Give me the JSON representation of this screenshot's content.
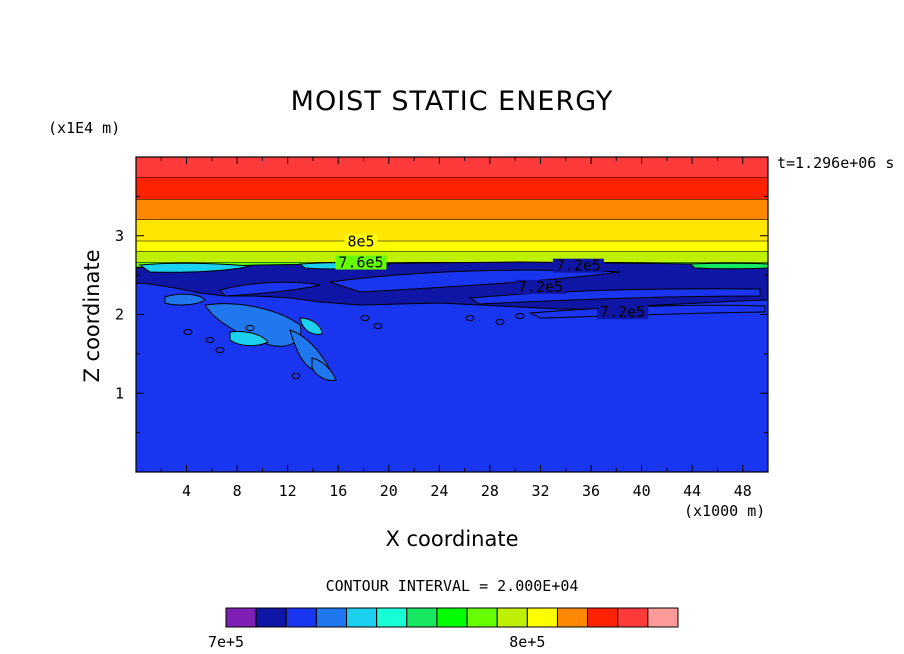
{
  "chart_data": {
    "type": "contour",
    "title": "MOIST STATIC ENERGY",
    "xlabel": "X coordinate",
    "ylabel": "Z coordinate",
    "x_multiplier": "(x1000 m)",
    "z_multiplier": "(x1E4 m)",
    "time_label": "t=1.296e+06 s",
    "contour_interval_label": "CONTOUR INTERVAL = 2.000E+04",
    "xlim": [
      0,
      50
    ],
    "ylim": [
      0,
      4
    ],
    "x_ticks": [
      "4",
      "8",
      "12",
      "16",
      "20",
      "24",
      "28",
      "32",
      "36",
      "40",
      "44",
      "48"
    ],
    "y_ticks": [
      "1",
      "2",
      "3"
    ],
    "levels": [
      {
        "top": 4.0,
        "bottom": 3.74,
        "color": "#ff3a3a"
      },
      {
        "top": 3.74,
        "bottom": 3.46,
        "color": "#ff2200"
      },
      {
        "top": 3.46,
        "bottom": 3.2,
        "color": "#ff8800"
      },
      {
        "top": 3.2,
        "bottom": 2.93,
        "color": "#ffe600"
      },
      {
        "top": 2.93,
        "bottom": 2.8,
        "color": "#ffff00"
      },
      {
        "top": 2.8,
        "bottom": 2.66,
        "color": "#bff000"
      },
      {
        "top": 2.66,
        "bottom": 2.6,
        "color": "#66ff00"
      }
    ],
    "contour_labels": [
      {
        "text": "8e5",
        "x": 17.8,
        "z": 2.93
      },
      {
        "text": "7.6e5",
        "x": 17.8,
        "z": 2.66
      },
      {
        "text": "7.2e5",
        "x": 35.0,
        "z": 2.62
      },
      {
        "text": "7.2e5",
        "x": 32.0,
        "z": 2.35
      },
      {
        "text": "7.2e5",
        "x": 38.5,
        "z": 2.03
      }
    ],
    "colorbar": {
      "colors": [
        "#7f1fb6",
        "#0f16a6",
        "#1a35f0",
        "#1f78f0",
        "#1ad2f0",
        "#16ffd6",
        "#16e864",
        "#00ff00",
        "#66ff00",
        "#bff000",
        "#ffff00",
        "#ff8800",
        "#ff2200",
        "#ff3a3a",
        "#ff9a9a"
      ],
      "label_left": "7e+5",
      "label_right": "8e+5"
    }
  }
}
